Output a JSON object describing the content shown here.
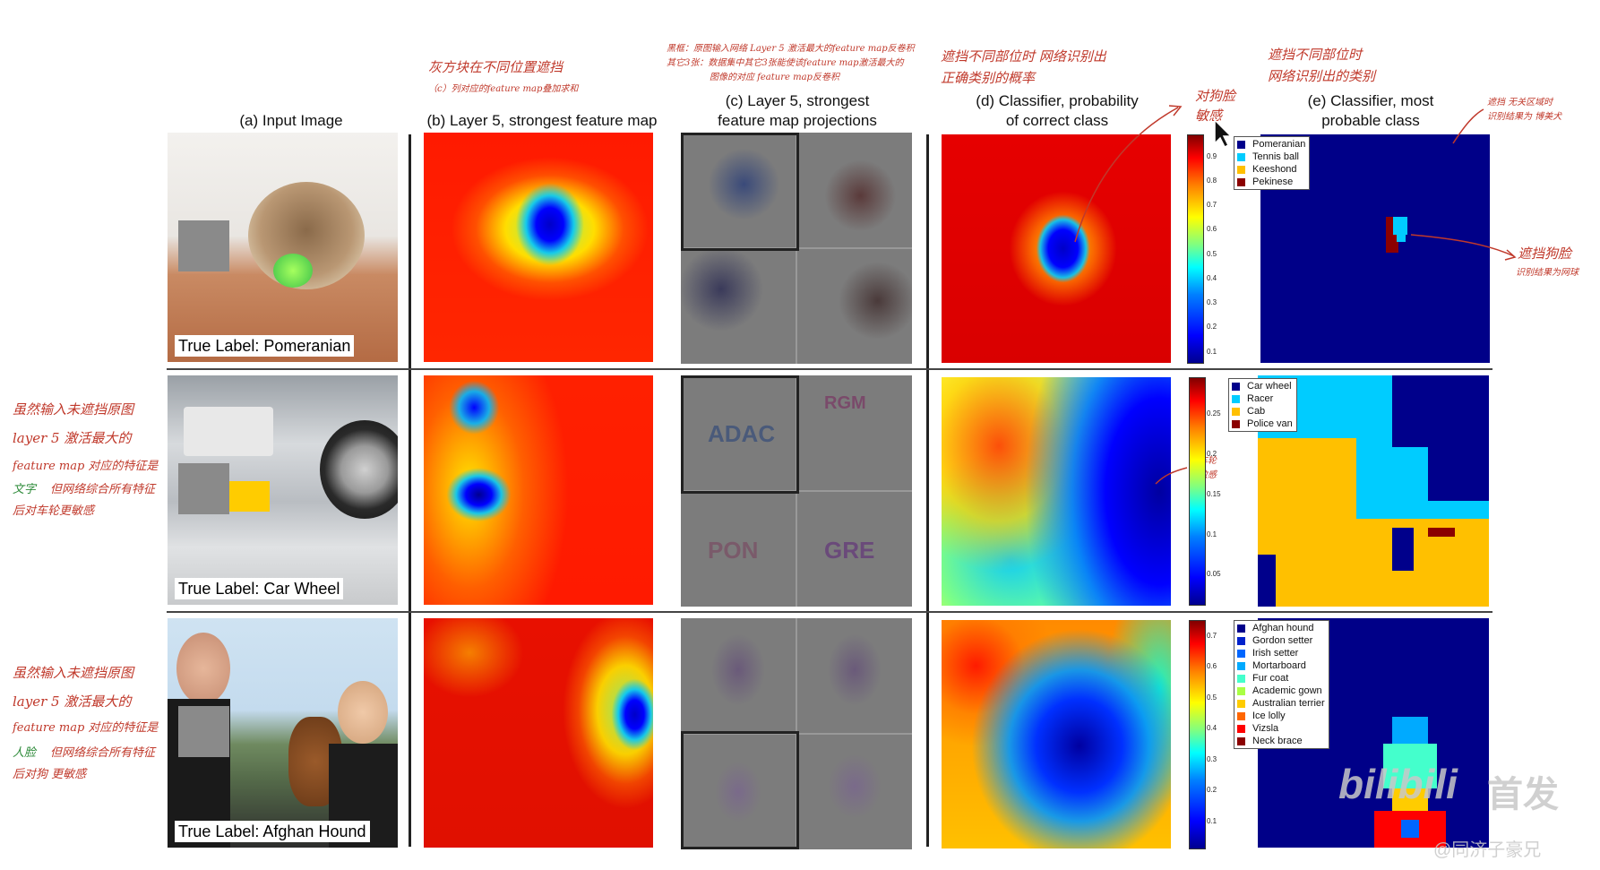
{
  "columns": {
    "a": "(a) Input Image",
    "b": "(b) Layer 5, strongest feature map",
    "c1": "(c) Layer 5, strongest",
    "c2": "feature map projections",
    "d1": "(d) Classifier, probability",
    "d2": "of correct class",
    "e1": "(e) Classifier, most",
    "e2": "probable class"
  },
  "rows": [
    {
      "true_label": "True Label: Pomeranian",
      "legend": [
        {
          "name": "Pomeranian",
          "color": "#00008b"
        },
        {
          "name": "Tennis ball",
          "color": "#00ccff"
        },
        {
          "name": "Keeshond",
          "color": "#ffc000"
        },
        {
          "name": "Pekinese",
          "color": "#8b0000"
        }
      ],
      "cbar_ticks": [
        "0.9",
        "0.8",
        "0.7",
        "0.6",
        "0.5",
        "0.4",
        "0.3",
        "0.2",
        "0.1"
      ]
    },
    {
      "true_label": "True Label: Car Wheel",
      "legend": [
        {
          "name": "Car wheel",
          "color": "#00008b"
        },
        {
          "name": "Racer",
          "color": "#00ccff"
        },
        {
          "name": "Cab",
          "color": "#ffc000"
        },
        {
          "name": "Police van",
          "color": "#8b0000"
        }
      ],
      "cbar_ticks": [
        "0.25",
        "0.2",
        "0.15",
        "0.1",
        "0.05"
      ]
    },
    {
      "true_label": "True Label: Afghan Hound",
      "legend": [
        {
          "name": "Afghan hound",
          "color": "#00008b"
        },
        {
          "name": "Gordon setter",
          "color": "#0022cc"
        },
        {
          "name": "Irish setter",
          "color": "#0066ff"
        },
        {
          "name": "Mortarboard",
          "color": "#00aaff"
        },
        {
          "name": "Fur coat",
          "color": "#44ffcc"
        },
        {
          "name": "Academic gown",
          "color": "#aaff44"
        },
        {
          "name": "Australian terrier",
          "color": "#ffcc00"
        },
        {
          "name": "Ice lolly",
          "color": "#ff6600"
        },
        {
          "name": "Vizsla",
          "color": "#ff0000"
        },
        {
          "name": "Neck brace",
          "color": "#8b0000"
        }
      ],
      "cbar_ticks": [
        "0.7",
        "0.6",
        "0.5",
        "0.4",
        "0.3",
        "0.2",
        "0.1"
      ]
    }
  ],
  "projection_text": {
    "row2": [
      "ADAC",
      "RGM",
      "PON",
      "GRE"
    ]
  },
  "annotations": {
    "top_b_1": "灰方块在不同位置遮挡",
    "top_b_2": "（c）列对应的feature map叠加求和",
    "top_c_1": "黑框：原图输入网络 Layer 5 激活最大的feature map反卷积",
    "top_c_2": "其它3张：数据集中其它3张能使该feature map激活最大的",
    "top_c_3": "图像的对应 feature map反卷积",
    "top_d_1": "遮挡不同部位时  网络识别出",
    "top_d_2": "正确类别的概率",
    "top_e_1": "遮挡不同部位时",
    "top_e_2": "网络识别出的类别",
    "dog_face": "对狗脸",
    "sensitive": "敏感",
    "occlude_irrelevant_1": "遮挡 无关区域时",
    "occlude_irrelevant_2": "识别结果为 博美犬",
    "occlude_face_1": "遮挡狗脸",
    "occlude_face_2": "识别结果为网球",
    "wheel_1": "对车轮",
    "wheel_2": "更敏感",
    "left2_1": "虽然输入未遮挡原图",
    "left2_2": "layer 5 激活最大的",
    "left2_3": "feature map 对应的特征是",
    "left2_4a": "文字",
    "left2_4b": "但网络综合所有特征",
    "left2_5": "后对车轮更敏感",
    "left3_1": "虽然输入未遮挡原图",
    "left3_2": "layer 5 激活最大的",
    "left3_3": "feature map 对应的特征是",
    "left3_4a": "人脸",
    "left3_4b": "但网络综合所有特征",
    "left3_5": "后对狗   更敏感"
  },
  "watermark": {
    "brand": "bilibili",
    "tag": "首发",
    "author": "@同济子豪兄"
  }
}
